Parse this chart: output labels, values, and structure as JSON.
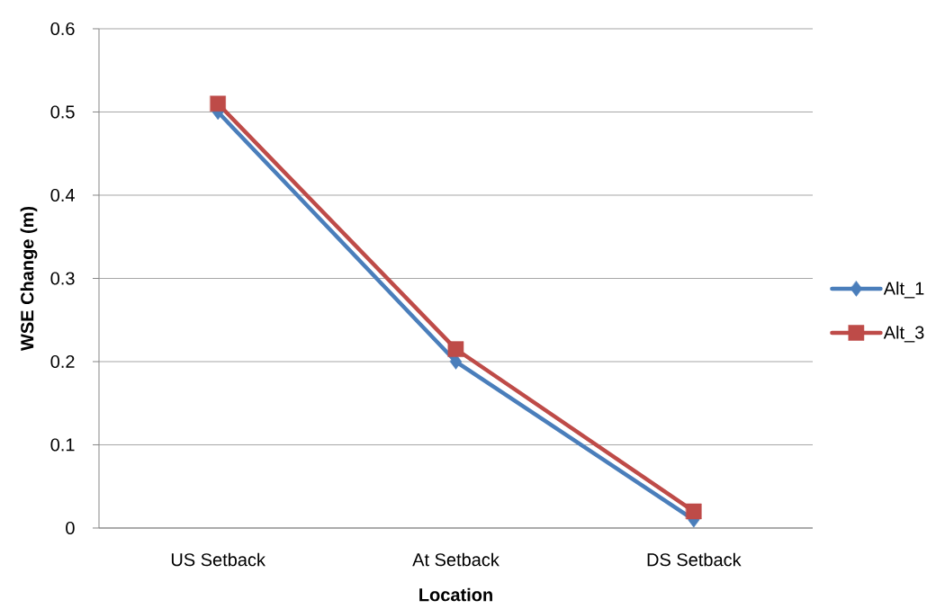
{
  "chart_data": {
    "type": "line",
    "xlabel": "Location",
    "ylabel": "WSE Change (m)",
    "categories": [
      "US Setback",
      "At Setback",
      "DS Setback"
    ],
    "series": [
      {
        "name": "Alt_1",
        "color": "#4a7ebb",
        "marker": "diamond",
        "values": [
          0.5,
          0.2,
          0.01
        ]
      },
      {
        "name": "Alt_3",
        "color": "#be4b48",
        "marker": "square",
        "values": [
          0.51,
          0.215,
          0.02
        ]
      }
    ],
    "ylim": [
      0,
      0.6
    ],
    "yticks": [
      0,
      0.1,
      0.2,
      0.3,
      0.4,
      0.5,
      0.6
    ],
    "grid": "y",
    "legend": "right",
    "line_style": "solid"
  }
}
